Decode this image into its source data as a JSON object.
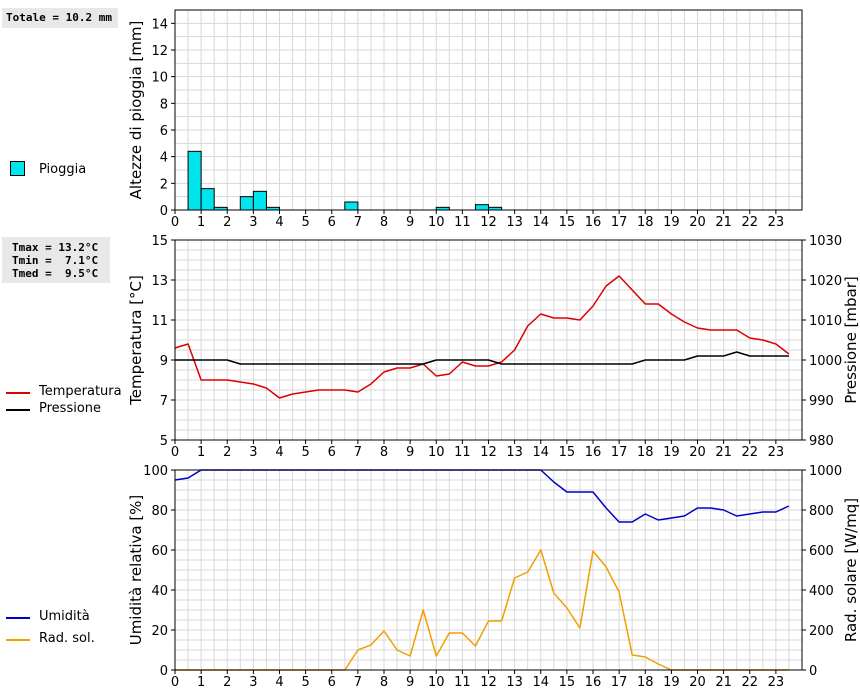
{
  "summary": {
    "totale": "Totale = 10.2 mm",
    "tmax": "Tmax = 13.2°C",
    "tmin": "Tmin =  7.1°C",
    "tmed": "Tmed =  9.5°C"
  },
  "legend": {
    "rain": "Pioggia",
    "temperature": "Temperatura",
    "pressure": "Pressione",
    "humidity": "Umidità",
    "radiation": "Rad. sol."
  },
  "colors": {
    "rain": "#00e5ee",
    "temperature": "#dd0000",
    "pressure": "#000000",
    "humidity": "#0000cc",
    "radiation": "#f0a000",
    "grid": "#d8d8d8"
  },
  "chart_data": [
    {
      "type": "bar",
      "ylabel": "Altezze di pioggia [mm]",
      "ylim": [
        0,
        15
      ],
      "yticks": [
        0,
        2,
        4,
        6,
        8,
        10,
        12,
        14
      ],
      "xlim": [
        0,
        24
      ],
      "xticks": [
        0,
        1,
        2,
        3,
        4,
        5,
        6,
        7,
        8,
        9,
        10,
        11,
        12,
        13,
        14,
        15,
        16,
        17,
        18,
        19,
        20,
        21,
        22,
        23
      ],
      "grid": true,
      "bin_width_hours": 0.5,
      "series": [
        {
          "name": "Pioggia",
          "x": [
            0.5,
            1.0,
            1.5,
            2.5,
            3.0,
            3.5,
            6.5,
            10.0,
            11.5,
            12.0
          ],
          "values": [
            4.4,
            1.6,
            0.2,
            1.0,
            1.4,
            0.2,
            0.6,
            0.2,
            0.4,
            0.2
          ]
        }
      ]
    },
    {
      "type": "line",
      "ylabel": "Temperatura [°C]",
      "y2label": "Pressione [mbar]",
      "ylim": [
        5,
        15
      ],
      "yticks": [
        5,
        7,
        9,
        11,
        13,
        15
      ],
      "y2lim": [
        980,
        1030
      ],
      "y2ticks": [
        980,
        990,
        1000,
        1010,
        1020,
        1030
      ],
      "xlim": [
        0,
        24
      ],
      "xticks": [
        0,
        1,
        2,
        3,
        4,
        5,
        6,
        7,
        8,
        9,
        10,
        11,
        12,
        13,
        14,
        15,
        16,
        17,
        18,
        19,
        20,
        21,
        22,
        23
      ],
      "grid": true,
      "series": [
        {
          "name": "Temperatura",
          "axis": "left",
          "x": [
            0,
            0.5,
            1,
            1.5,
            2,
            2.5,
            3,
            3.5,
            4,
            4.5,
            5,
            5.5,
            6,
            6.5,
            7,
            7.5,
            8,
            8.5,
            9,
            9.5,
            10,
            10.5,
            11,
            11.5,
            12,
            12.5,
            13,
            13.5,
            14,
            14.5,
            15,
            15.5,
            16,
            16.5,
            17,
            17.5,
            18,
            18.5,
            19,
            19.5,
            20,
            20.5,
            21,
            21.5,
            22,
            22.5,
            23,
            23.5
          ],
          "values": [
            9.6,
            9.8,
            8.0,
            8.0,
            8.0,
            7.9,
            7.8,
            7.6,
            7.1,
            7.3,
            7.4,
            7.5,
            7.5,
            7.5,
            7.4,
            7.8,
            8.4,
            8.6,
            8.6,
            8.8,
            8.2,
            8.3,
            8.9,
            8.7,
            8.7,
            8.9,
            9.5,
            10.7,
            11.3,
            11.1,
            11.1,
            11.0,
            11.7,
            12.7,
            13.2,
            12.5,
            11.8,
            11.8,
            11.3,
            10.9,
            10.6,
            10.5,
            10.5,
            10.5,
            10.1,
            10.0,
            9.8,
            9.3
          ]
        },
        {
          "name": "Pressione",
          "axis": "right",
          "x": [
            0,
            0.5,
            1,
            1.5,
            2,
            2.5,
            3,
            3.5,
            4,
            4.5,
            5,
            5.5,
            6,
            6.5,
            7,
            7.5,
            8,
            8.5,
            9,
            9.5,
            10,
            10.5,
            11,
            11.5,
            12,
            12.5,
            13,
            13.5,
            14,
            14.5,
            15,
            15.5,
            16,
            16.5,
            17,
            17.5,
            18,
            18.5,
            19,
            19.5,
            20,
            20.5,
            21,
            21.5,
            22,
            22.5,
            23,
            23.5
          ],
          "values": [
            1000,
            1000,
            1000,
            1000,
            1000,
            999,
            999,
            999,
            999,
            999,
            999,
            999,
            999,
            999,
            999,
            999,
            999,
            999,
            999,
            999,
            1000,
            1000,
            1000,
            1000,
            1000,
            999,
            999,
            999,
            999,
            999,
            999,
            999,
            999,
            999,
            999,
            999,
            1000,
            1000,
            1000,
            1000,
            1001,
            1001,
            1001,
            1002,
            1001,
            1001,
            1001,
            1001
          ]
        }
      ]
    },
    {
      "type": "line",
      "ylabel": "Umidità relativa [%]",
      "y2label": "Rad. solare [W/mq]",
      "ylim": [
        0,
        100
      ],
      "yticks": [
        0,
        20,
        40,
        60,
        80,
        100
      ],
      "y2lim": [
        0,
        1000
      ],
      "y2ticks": [
        0,
        200,
        400,
        600,
        800,
        1000
      ],
      "xlim": [
        0,
        24
      ],
      "xticks": [
        0,
        1,
        2,
        3,
        4,
        5,
        6,
        7,
        8,
        9,
        10,
        11,
        12,
        13,
        14,
        15,
        16,
        17,
        18,
        19,
        20,
        21,
        22,
        23
      ],
      "grid": true,
      "series": [
        {
          "name": "Umidità",
          "axis": "left",
          "x": [
            0,
            0.5,
            1,
            1.5,
            2,
            2.5,
            3,
            3.5,
            4,
            4.5,
            5,
            5.5,
            6,
            6.5,
            7,
            7.5,
            8,
            8.5,
            9,
            9.5,
            10,
            10.5,
            11,
            11.5,
            12,
            12.5,
            13,
            13.5,
            14,
            14.5,
            15,
            15.5,
            16,
            16.5,
            17,
            17.5,
            18,
            18.5,
            19,
            19.5,
            20,
            20.5,
            21,
            21.5,
            22,
            22.5,
            23,
            23.5
          ],
          "values": [
            95,
            96,
            100,
            100,
            100,
            100,
            100,
            100,
            100,
            100,
            100,
            100,
            100,
            100,
            100,
            100,
            100,
            100,
            100,
            100,
            100,
            100,
            100,
            100,
            100,
            100,
            100,
            100,
            100,
            94,
            89,
            89,
            89,
            81,
            74,
            74,
            78,
            75,
            76,
            77,
            81,
            81,
            80,
            77,
            78,
            79,
            79,
            82
          ]
        },
        {
          "name": "Rad. sol.",
          "axis": "right",
          "x": [
            0,
            0.5,
            1,
            1.5,
            2,
            2.5,
            3,
            3.5,
            4,
            4.5,
            5,
            5.5,
            6,
            6.5,
            7,
            7.5,
            8,
            8.5,
            9,
            9.5,
            10,
            10.5,
            11,
            11.5,
            12,
            12.5,
            13,
            13.5,
            14,
            14.5,
            15,
            15.5,
            16,
            16.5,
            17,
            17.5,
            18,
            18.5,
            19,
            19.5,
            20,
            20.5,
            21,
            21.5,
            22,
            22.5,
            23,
            23.5
          ],
          "values": [
            0,
            0,
            0,
            0,
            0,
            0,
            0,
            0,
            0,
            0,
            0,
            0,
            0,
            0,
            100,
            125,
            195,
            100,
            70,
            300,
            70,
            185,
            185,
            120,
            245,
            245,
            460,
            490,
            600,
            385,
            310,
            210,
            595,
            515,
            390,
            75,
            65,
            30,
            0,
            0,
            0,
            0,
            0,
            0,
            0,
            0,
            0,
            0
          ]
        }
      ]
    }
  ]
}
